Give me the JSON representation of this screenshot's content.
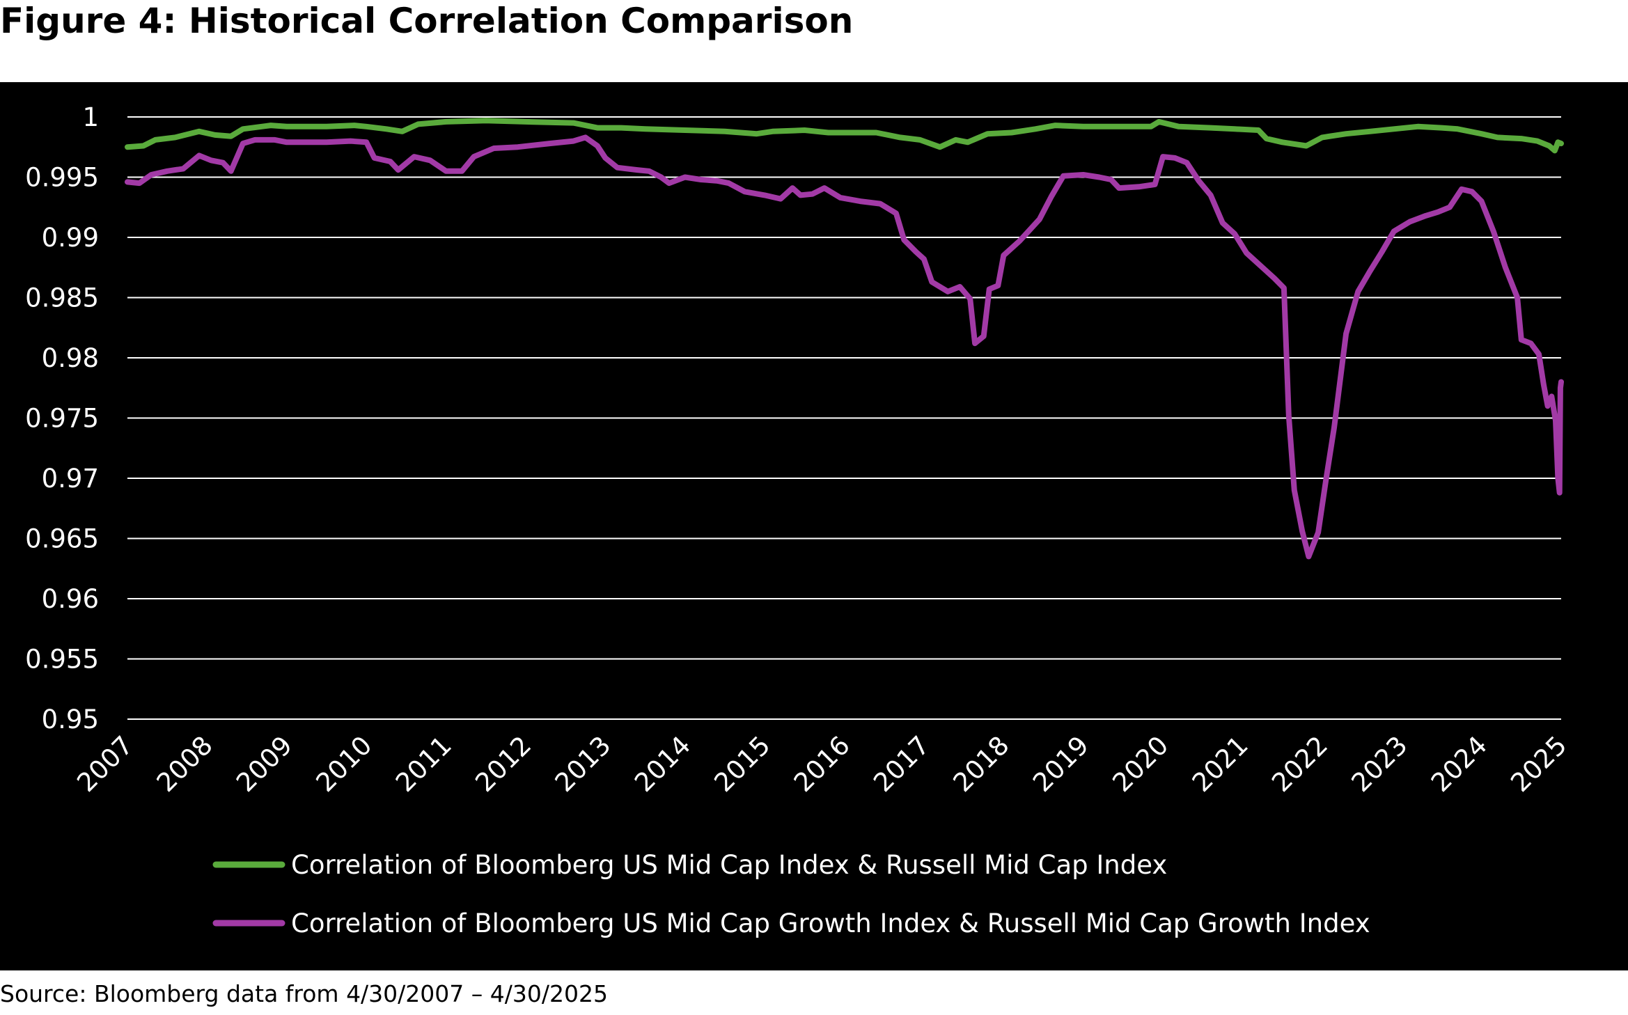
{
  "figure": {
    "title": "Figure 4: Historical Correlation Comparison",
    "source": "Source: Bloomberg data from 4/30/2007 – 4/30/2025"
  },
  "chart_data": {
    "type": "line",
    "title": "",
    "xlabel": "",
    "ylabel": "",
    "xlim": [
      2007,
      2025
    ],
    "ylim": [
      0.95,
      1
    ],
    "yticks": [
      "0.95",
      "0.955",
      "0.96",
      "0.965",
      "0.97",
      "0.975",
      "0.98",
      "0.985",
      "0.99",
      "0.995",
      "1"
    ],
    "xticks": [
      "2007",
      "2008",
      "2009",
      "2010",
      "2011",
      "2012",
      "2013",
      "2014",
      "2015",
      "2016",
      "2017",
      "2018",
      "2019",
      "2020",
      "2021",
      "2022",
      "2023",
      "2024",
      "2025"
    ],
    "grid": true,
    "legend": "bottom",
    "series": [
      {
        "name": "Correlation of Bloomberg US Mid Cap Index & Russell Mid Cap Index",
        "color": "#5aab3c",
        "points": [
          [
            2007.0,
            0.9975
          ],
          [
            2007.2,
            0.9976
          ],
          [
            2007.35,
            0.9981
          ],
          [
            2007.6,
            0.9983
          ],
          [
            2007.9,
            0.9988
          ],
          [
            2008.1,
            0.9985
          ],
          [
            2008.3,
            0.9984
          ],
          [
            2008.45,
            0.999
          ],
          [
            2008.8,
            0.9993
          ],
          [
            2009.0,
            0.9992
          ],
          [
            2009.5,
            0.9992
          ],
          [
            2009.85,
            0.9993
          ],
          [
            2010.0,
            0.9992
          ],
          [
            2010.25,
            0.999
          ],
          [
            2010.45,
            0.9988
          ],
          [
            2010.65,
            0.9994
          ],
          [
            2011.0,
            0.9996
          ],
          [
            2011.5,
            0.9997
          ],
          [
            2012.0,
            0.9996
          ],
          [
            2012.6,
            0.9995
          ],
          [
            2012.9,
            0.9991
          ],
          [
            2013.2,
            0.9991
          ],
          [
            2013.5,
            0.999
          ],
          [
            2014.0,
            0.9989
          ],
          [
            2014.5,
            0.9988
          ],
          [
            2014.9,
            0.9986
          ],
          [
            2015.1,
            0.9988
          ],
          [
            2015.5,
            0.9989
          ],
          [
            2015.8,
            0.9987
          ],
          [
            2016.0,
            0.9987
          ],
          [
            2016.4,
            0.9987
          ],
          [
            2016.7,
            0.9983
          ],
          [
            2016.95,
            0.9981
          ],
          [
            2017.2,
            0.9975
          ],
          [
            2017.4,
            0.9981
          ],
          [
            2017.55,
            0.9979
          ],
          [
            2017.8,
            0.9986
          ],
          [
            2018.1,
            0.9987
          ],
          [
            2018.4,
            0.999
          ],
          [
            2018.65,
            0.9993
          ],
          [
            2019.0,
            0.9992
          ],
          [
            2019.5,
            0.9992
          ],
          [
            2019.85,
            0.9992
          ],
          [
            2019.95,
            0.9996
          ],
          [
            2020.2,
            0.9992
          ],
          [
            2020.6,
            0.9991
          ],
          [
            2020.9,
            0.999
          ],
          [
            2021.2,
            0.9989
          ],
          [
            2021.3,
            0.9982
          ],
          [
            2021.5,
            0.9979
          ],
          [
            2021.8,
            0.9976
          ],
          [
            2022.0,
            0.9983
          ],
          [
            2022.3,
            0.9986
          ],
          [
            2022.6,
            0.9988
          ],
          [
            2022.9,
            0.999
          ],
          [
            2023.2,
            0.9992
          ],
          [
            2023.5,
            0.9991
          ],
          [
            2023.7,
            0.999
          ],
          [
            2024.0,
            0.9986
          ],
          [
            2024.2,
            0.9983
          ],
          [
            2024.5,
            0.9982
          ],
          [
            2024.7,
            0.998
          ],
          [
            2024.85,
            0.9976
          ],
          [
            2024.92,
            0.9972
          ],
          [
            2024.96,
            0.9979
          ],
          [
            2025.0,
            0.9978
          ]
        ]
      },
      {
        "name": "Correlation of Bloomberg US Mid Cap Growth Index & Russell Mid Cap Growth Index",
        "color": "#a23aa6",
        "points": [
          [
            2007.0,
            0.9946
          ],
          [
            2007.15,
            0.9945
          ],
          [
            2007.3,
            0.9952
          ],
          [
            2007.5,
            0.9955
          ],
          [
            2007.7,
            0.9957
          ],
          [
            2007.9,
            0.9968
          ],
          [
            2008.05,
            0.9964
          ],
          [
            2008.2,
            0.9962
          ],
          [
            2008.3,
            0.9955
          ],
          [
            2008.45,
            0.9978
          ],
          [
            2008.6,
            0.9981
          ],
          [
            2008.85,
            0.9981
          ],
          [
            2009.0,
            0.9979
          ],
          [
            2009.5,
            0.9979
          ],
          [
            2009.8,
            0.998
          ],
          [
            2010.0,
            0.9979
          ],
          [
            2010.1,
            0.9966
          ],
          [
            2010.3,
            0.9963
          ],
          [
            2010.4,
            0.9956
          ],
          [
            2010.6,
            0.9967
          ],
          [
            2010.8,
            0.9964
          ],
          [
            2011.0,
            0.9955
          ],
          [
            2011.2,
            0.9955
          ],
          [
            2011.35,
            0.9967
          ],
          [
            2011.6,
            0.9974
          ],
          [
            2011.9,
            0.9975
          ],
          [
            2012.3,
            0.9978
          ],
          [
            2012.6,
            0.998
          ],
          [
            2012.75,
            0.9983
          ],
          [
            2012.9,
            0.9976
          ],
          [
            2013.0,
            0.9966
          ],
          [
            2013.15,
            0.9958
          ],
          [
            2013.4,
            0.9956
          ],
          [
            2013.55,
            0.9955
          ],
          [
            2013.7,
            0.995
          ],
          [
            2013.8,
            0.9945
          ],
          [
            2014.0,
            0.995
          ],
          [
            2014.2,
            0.9948
          ],
          [
            2014.4,
            0.9947
          ],
          [
            2014.55,
            0.9945
          ],
          [
            2014.75,
            0.9938
          ],
          [
            2015.0,
            0.9935
          ],
          [
            2015.2,
            0.9932
          ],
          [
            2015.35,
            0.9941
          ],
          [
            2015.45,
            0.9935
          ],
          [
            2015.6,
            0.9936
          ],
          [
            2015.75,
            0.9941
          ],
          [
            2015.95,
            0.9933
          ],
          [
            2016.2,
            0.993
          ],
          [
            2016.45,
            0.9928
          ],
          [
            2016.65,
            0.992
          ],
          [
            2016.75,
            0.9898
          ],
          [
            2016.9,
            0.9888
          ],
          [
            2017.0,
            0.9882
          ],
          [
            2017.1,
            0.9863
          ],
          [
            2017.3,
            0.9855
          ],
          [
            2017.45,
            0.9859
          ],
          [
            2017.58,
            0.9849
          ],
          [
            2017.64,
            0.9812
          ],
          [
            2017.75,
            0.9818
          ],
          [
            2017.82,
            0.9857
          ],
          [
            2017.93,
            0.986
          ],
          [
            2018.0,
            0.9885
          ],
          [
            2018.2,
            0.9897
          ],
          [
            2018.45,
            0.9915
          ],
          [
            2018.6,
            0.9934
          ],
          [
            2018.75,
            0.9951
          ],
          [
            2019.0,
            0.9952
          ],
          [
            2019.2,
            0.995
          ],
          [
            2019.35,
            0.9948
          ],
          [
            2019.45,
            0.9941
          ],
          [
            2019.7,
            0.9942
          ],
          [
            2019.9,
            0.9944
          ],
          [
            2020.0,
            0.9967
          ],
          [
            2020.15,
            0.9966
          ],
          [
            2020.3,
            0.9962
          ],
          [
            2020.45,
            0.9947
          ],
          [
            2020.6,
            0.9935
          ],
          [
            2020.75,
            0.9912
          ],
          [
            2020.9,
            0.9903
          ],
          [
            2021.05,
            0.9887
          ],
          [
            2021.25,
            0.9875
          ],
          [
            2021.4,
            0.9866
          ],
          [
            2021.52,
            0.9858
          ],
          [
            2021.58,
            0.9752
          ],
          [
            2021.65,
            0.969
          ],
          [
            2021.75,
            0.9656
          ],
          [
            2021.83,
            0.9635
          ],
          [
            2021.95,
            0.9655
          ],
          [
            2022.05,
            0.97
          ],
          [
            2022.15,
            0.9742
          ],
          [
            2022.3,
            0.982
          ],
          [
            2022.45,
            0.9855
          ],
          [
            2022.6,
            0.9872
          ],
          [
            2022.75,
            0.9888
          ],
          [
            2022.9,
            0.9905
          ],
          [
            2023.1,
            0.9913
          ],
          [
            2023.3,
            0.9918
          ],
          [
            2023.45,
            0.9921
          ],
          [
            2023.6,
            0.9925
          ],
          [
            2023.75,
            0.994
          ],
          [
            2023.88,
            0.9938
          ],
          [
            2024.0,
            0.993
          ],
          [
            2024.15,
            0.9905
          ],
          [
            2024.3,
            0.9875
          ],
          [
            2024.45,
            0.985
          ],
          [
            2024.5,
            0.9815
          ],
          [
            2024.62,
            0.9812
          ],
          [
            2024.72,
            0.9803
          ],
          [
            2024.78,
            0.9778
          ],
          [
            2024.83,
            0.976
          ],
          [
            2024.88,
            0.9768
          ],
          [
            2024.93,
            0.9748
          ],
          [
            2024.96,
            0.97
          ],
          [
            2024.98,
            0.9688
          ],
          [
            2024.99,
            0.9775
          ],
          [
            2025.0,
            0.978
          ]
        ]
      }
    ]
  }
}
